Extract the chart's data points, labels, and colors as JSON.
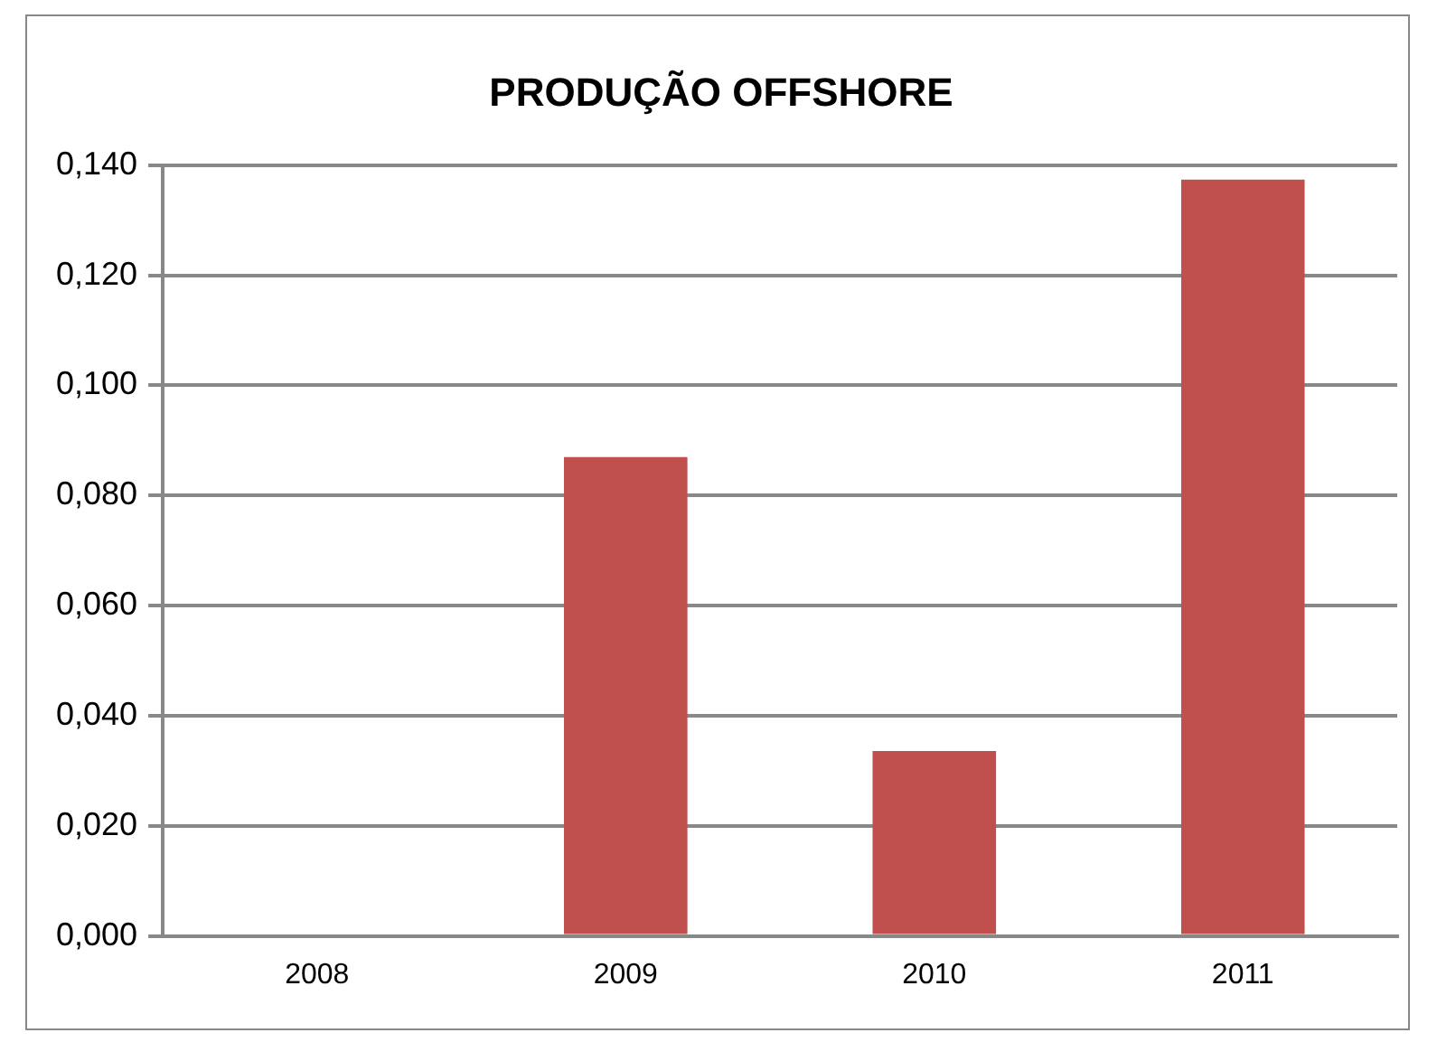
{
  "chart_data": {
    "type": "bar",
    "title": "PRODUÇÃO OFFSHORE",
    "categories": [
      "2008",
      "2009",
      "2010",
      "2011"
    ],
    "values": [
      0,
      0.087,
      0.0336,
      0.1374
    ],
    "color": "#c0504d",
    "ylim": [
      0,
      0.14
    ],
    "yticks": [
      {
        "value": 0,
        "label": "0,000"
      },
      {
        "value": 0.02,
        "label": "0,020"
      },
      {
        "value": 0.04,
        "label": "0,040"
      },
      {
        "value": 0.06,
        "label": "0,060"
      },
      {
        "value": 0.08,
        "label": "0,080"
      },
      {
        "value": 0.1,
        "label": "0,100"
      },
      {
        "value": 0.12,
        "label": "0,120"
      },
      {
        "value": 0.14,
        "label": "0,140"
      }
    ],
    "grid": "y",
    "legend": false
  }
}
